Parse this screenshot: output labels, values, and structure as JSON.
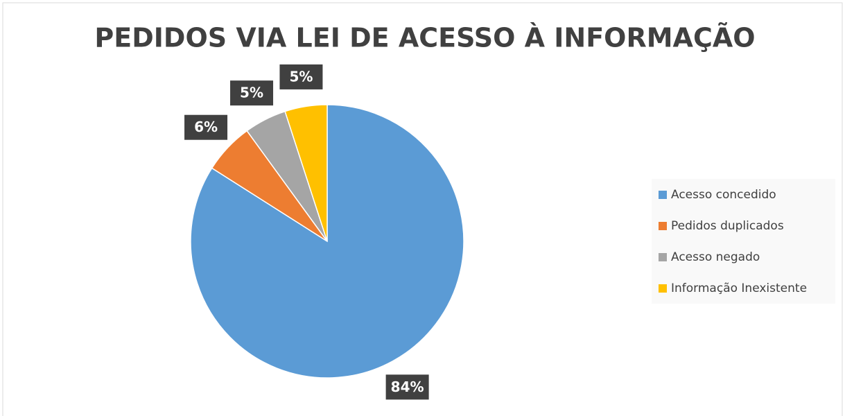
{
  "chart_data": {
    "type": "pie",
    "title": "PEDIDOS VIA LEI DE ACESSO À INFORMAÇÃO",
    "categories": [
      "Acesso concedido",
      "Pedidos duplicados",
      "Acesso negado",
      "Informação Inexistente"
    ],
    "values": [
      84,
      6,
      5,
      5
    ],
    "value_labels": [
      "84%",
      "6%",
      "5%",
      "5%"
    ],
    "colors": [
      "#5b9bd5",
      "#ed7d31",
      "#a5a5a5",
      "#ffc000"
    ],
    "legend": "right"
  }
}
